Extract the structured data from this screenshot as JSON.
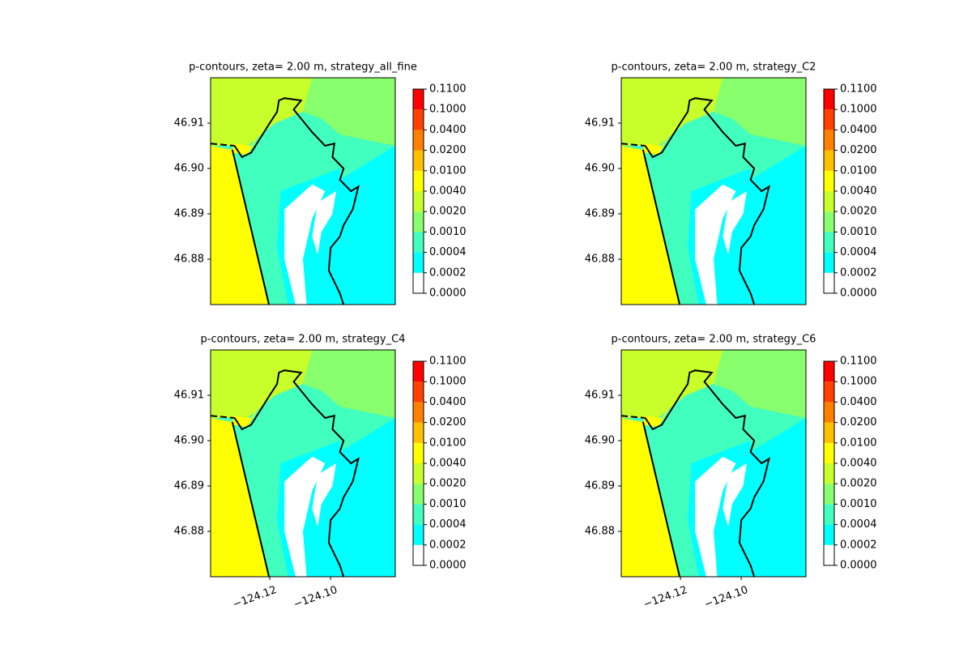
{
  "chart_data": [
    {
      "type": "contour",
      "title": "p-contours, zeta= 2.00 m, strategy_all_fine",
      "ylim": [
        46.87,
        46.92
      ],
      "yticks": [
        46.88,
        46.89,
        {
          "value": 46.9,
          "label": "46.90"
        },
        46.91
      ],
      "levels": [
        {
          "value": 0,
          "label": "0.0000"
        },
        {
          "value": 0.0002,
          "label": "0.0002"
        },
        {
          "value": 0.0004,
          "label": "0.0004"
        },
        {
          "value": 0.001,
          "label": "0.0010"
        },
        {
          "value": 0.002,
          "label": "0.0020"
        },
        {
          "value": 0.004,
          "label": "0.0040"
        },
        {
          "value": 0.01,
          "label": "0.0100"
        },
        {
          "value": 0.02,
          "label": "0.0200"
        },
        {
          "value": 0.04,
          "label": "0.0400"
        },
        {
          "value": 0.1,
          "label": "0.1000"
        },
        {
          "value": 0.11,
          "label": "0.1100"
        }
      ],
      "colors": [
        "#ffffff",
        "#00ffff",
        "#40ffbf",
        "#88ff6c",
        "#c8ff2a",
        "#ffff00",
        "#ffc000",
        "#ff8000",
        "#ff4000",
        "#ff0000"
      ]
    },
    {
      "type": "contour",
      "title": "p-contours, zeta= 2.00 m, strategy_C2",
      "ylim": [
        46.87,
        46.92
      ],
      "yticks": [
        46.88,
        46.89,
        {
          "value": 46.9,
          "label": "46.90"
        },
        46.91
      ],
      "levels": [
        {
          "value": 0,
          "label": "0.0000"
        },
        {
          "value": 0.0002,
          "label": "0.0002"
        },
        {
          "value": 0.0004,
          "label": "0.0004"
        },
        {
          "value": 0.001,
          "label": "0.0010"
        },
        {
          "value": 0.002,
          "label": "0.0020"
        },
        {
          "value": 0.004,
          "label": "0.0040"
        },
        {
          "value": 0.01,
          "label": "0.0100"
        },
        {
          "value": 0.02,
          "label": "0.0200"
        },
        {
          "value": 0.04,
          "label": "0.0400"
        },
        {
          "value": 0.1,
          "label": "0.1000"
        },
        {
          "value": 0.11,
          "label": "0.1100"
        }
      ],
      "colors": [
        "#ffffff",
        "#00ffff",
        "#40ffbf",
        "#88ff6c",
        "#c8ff2a",
        "#ffff00",
        "#ffc000",
        "#ff8000",
        "#ff4000",
        "#ff0000"
      ]
    },
    {
      "type": "contour",
      "title": "p-contours, zeta= 2.00 m, strategy_C4",
      "xlim": [
        -124.1395,
        -124.0787
      ],
      "xticks": [
        {
          "value": -124.12,
          "label": "−124.12"
        },
        {
          "value": -124.1,
          "label": "−124.10"
        }
      ],
      "ylim": [
        46.87,
        46.92
      ],
      "yticks": [
        46.88,
        46.89,
        {
          "value": 46.9,
          "label": "46.90"
        },
        46.91
      ],
      "levels": [
        {
          "value": 0,
          "label": "0.0000"
        },
        {
          "value": 0.0002,
          "label": "0.0002"
        },
        {
          "value": 0.0004,
          "label": "0.0004"
        },
        {
          "value": 0.001,
          "label": "0.0010"
        },
        {
          "value": 0.002,
          "label": "0.0020"
        },
        {
          "value": 0.004,
          "label": "0.0040"
        },
        {
          "value": 0.01,
          "label": "0.0100"
        },
        {
          "value": 0.02,
          "label": "0.0200"
        },
        {
          "value": 0.04,
          "label": "0.0400"
        },
        {
          "value": 0.1,
          "label": "0.1000"
        },
        {
          "value": 0.11,
          "label": "0.1100"
        }
      ],
      "colors": [
        "#ffffff",
        "#00ffff",
        "#40ffbf",
        "#88ff6c",
        "#c8ff2a",
        "#ffff00",
        "#ffc000",
        "#ff8000",
        "#ff4000",
        "#ff0000"
      ]
    },
    {
      "type": "contour",
      "title": "p-contours, zeta= 2.00 m, strategy_C6",
      "xlim": [
        -124.1395,
        -124.0787
      ],
      "xticks": [
        {
          "value": -124.12,
          "label": "−124.12"
        },
        {
          "value": -124.1,
          "label": "−124.10"
        }
      ],
      "ylim": [
        46.87,
        46.92
      ],
      "yticks": [
        46.88,
        46.89,
        {
          "value": 46.9,
          "label": "46.90"
        },
        46.91
      ],
      "levels": [
        {
          "value": 0,
          "label": "0.0000"
        },
        {
          "value": 0.0002,
          "label": "0.0002"
        },
        {
          "value": 0.0004,
          "label": "0.0004"
        },
        {
          "value": 0.001,
          "label": "0.0010"
        },
        {
          "value": 0.002,
          "label": "0.0020"
        },
        {
          "value": 0.004,
          "label": "0.0040"
        },
        {
          "value": 0.01,
          "label": "0.0100"
        },
        {
          "value": 0.02,
          "label": "0.0200"
        },
        {
          "value": 0.04,
          "label": "0.0400"
        },
        {
          "value": 0.1,
          "label": "0.1000"
        },
        {
          "value": 0.11,
          "label": "0.1100"
        }
      ],
      "colors": [
        "#ffffff",
        "#00ffff",
        "#40ffbf",
        "#88ff6c",
        "#c8ff2a",
        "#ffff00",
        "#ffc000",
        "#ff8000",
        "#ff4000",
        "#ff0000"
      ]
    }
  ]
}
